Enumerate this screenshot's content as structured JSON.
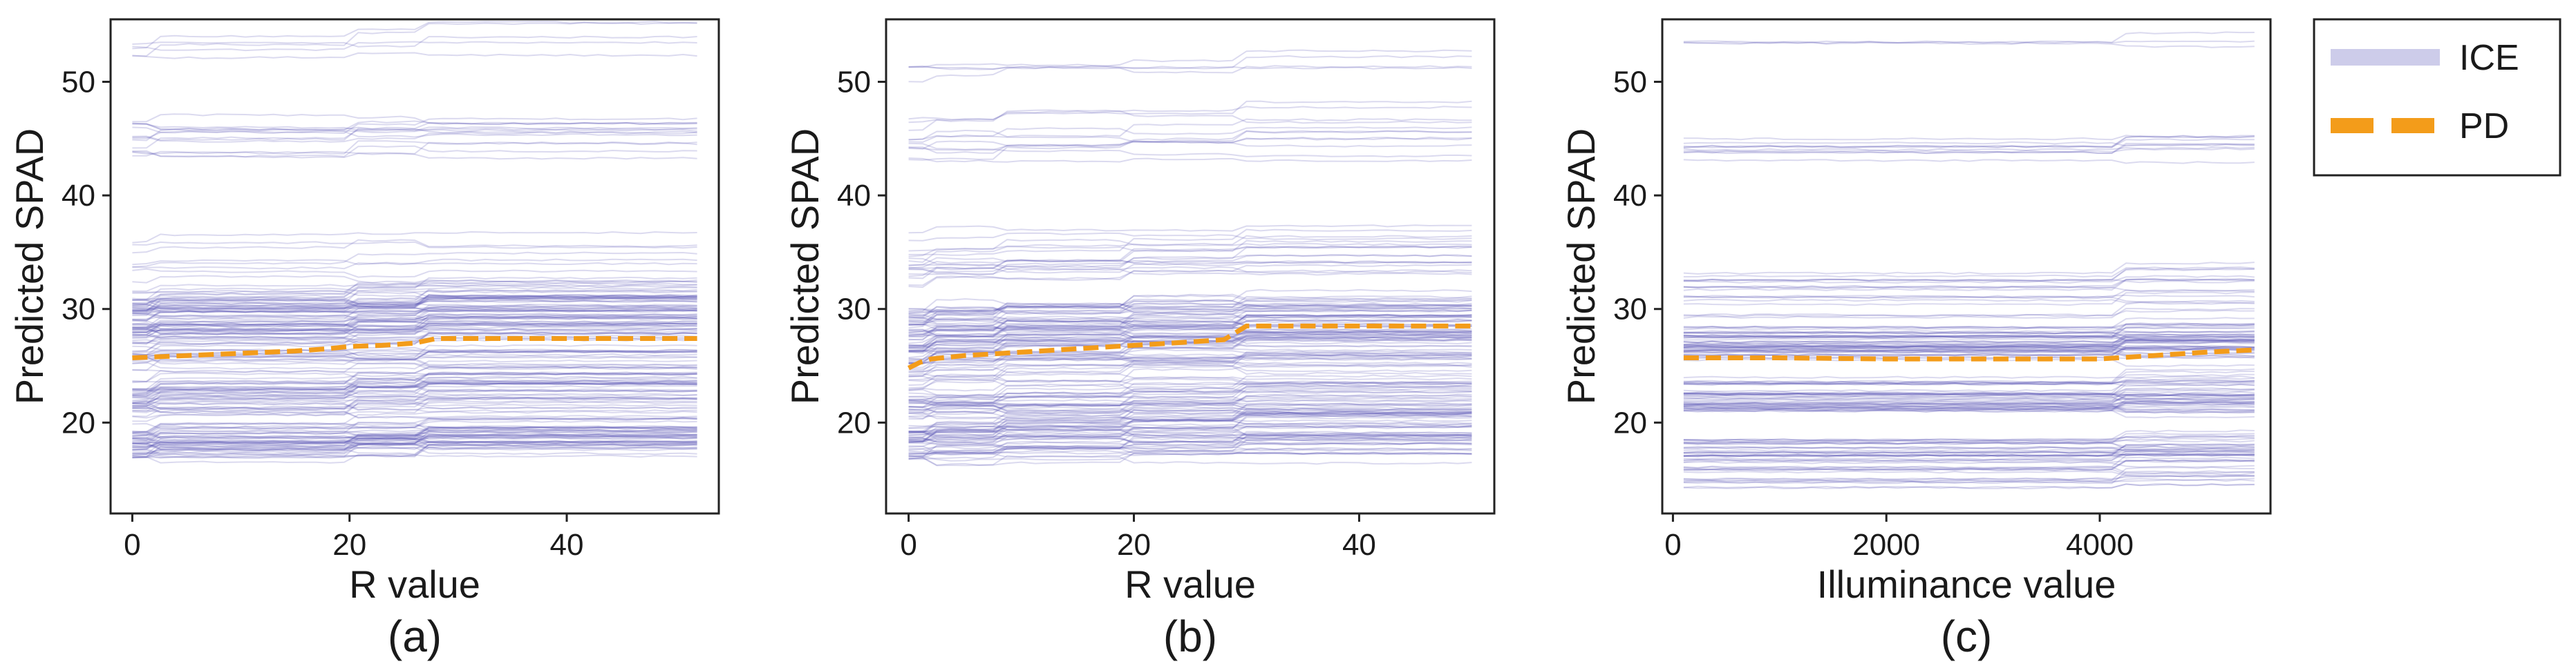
{
  "colors": {
    "ice": "#5b55b8",
    "pd": "#f39c1a",
    "axis": "#222222"
  },
  "legend": {
    "placement": "right",
    "entries": [
      {
        "label": "ICE",
        "style": "ice"
      },
      {
        "label": "PD",
        "style": "pd"
      }
    ]
  },
  "chart_data": [
    {
      "type": "line",
      "caption": "(a)",
      "xlabel": "R value",
      "ylabel": "Predicted SPAD",
      "xlim": [
        -2,
        54
      ],
      "ylim": [
        12,
        55.5
      ],
      "xticks": [
        0,
        20,
        40
      ],
      "yticks": [
        20,
        30,
        40,
        50
      ],
      "grid": false,
      "pd": {
        "name": "PD",
        "x": [
          0,
          5,
          10,
          15,
          18,
          20,
          23,
          26,
          28,
          35,
          45,
          52
        ],
        "y": [
          25.7,
          25.9,
          26.1,
          26.3,
          26.5,
          26.7,
          26.8,
          27.0,
          27.4,
          27.4,
          27.4,
          27.4
        ]
      },
      "ice": {
        "name": "ICE",
        "x_range": [
          0,
          52
        ],
        "breaks": [
          2,
          20,
          27
        ],
        "bands": [
          {
            "center": 52.8,
            "spread": 0.6,
            "count": 5
          },
          {
            "center": 44.0,
            "spread": 2.5,
            "count": 14
          },
          {
            "center": 33.0,
            "spread": 3.0,
            "count": 16
          },
          {
            "center": 29.0,
            "spread": 2.0,
            "count": 60
          },
          {
            "center": 24.0,
            "spread": 3.0,
            "count": 45
          },
          {
            "center": 18.0,
            "spread": 1.2,
            "count": 45
          },
          {
            "center": 21.0,
            "spread": 2.0,
            "count": 18
          }
        ]
      }
    },
    {
      "type": "line",
      "caption": "(b)",
      "xlabel": "R value",
      "ylabel": "Predicted SPAD",
      "xlim": [
        -2,
        52
      ],
      "ylim": [
        12,
        55.5
      ],
      "xticks": [
        0,
        20,
        40
      ],
      "yticks": [
        20,
        30,
        40,
        50
      ],
      "grid": false,
      "pd": {
        "name": "PD",
        "x": [
          0,
          1,
          2,
          5,
          10,
          15,
          20,
          25,
          28,
          30,
          35,
          40,
          50
        ],
        "y": [
          24.8,
          25.3,
          25.6,
          25.9,
          26.2,
          26.5,
          26.8,
          27.1,
          27.3,
          28.5,
          28.5,
          28.5,
          28.5
        ]
      },
      "ice": {
        "name": "ICE",
        "x_range": [
          0,
          50
        ],
        "breaks": [
          2,
          8,
          20,
          29
        ],
        "bands": [
          {
            "center": 51.5,
            "spread": 1.5,
            "count": 4
          },
          {
            "center": 45.0,
            "spread": 2.0,
            "count": 12
          },
          {
            "center": 34.0,
            "spread": 3.0,
            "count": 18
          },
          {
            "center": 28.0,
            "spread": 2.0,
            "count": 55
          },
          {
            "center": 23.5,
            "spread": 2.5,
            "count": 45
          },
          {
            "center": 18.0,
            "spread": 1.2,
            "count": 40
          },
          {
            "center": 20.5,
            "spread": 1.5,
            "count": 16
          }
        ]
      }
    },
    {
      "type": "line",
      "caption": "(c)",
      "xlabel": "Illuminance value",
      "ylabel": "Predicted SPAD",
      "xlim": [
        -100,
        5600
      ],
      "ylim": [
        12,
        55.5
      ],
      "xticks": [
        0,
        2000,
        4000
      ],
      "yticks": [
        20,
        30,
        40,
        50
      ],
      "grid": false,
      "pd": {
        "name": "PD",
        "x": [
          100,
          1000,
          2000,
          3000,
          4000,
          4500,
          5000,
          5450
        ],
        "y": [
          25.7,
          25.7,
          25.6,
          25.6,
          25.6,
          25.9,
          26.2,
          26.4
        ]
      },
      "ice": {
        "name": "ICE",
        "x_range": [
          100,
          5450
        ],
        "breaks": [
          4200
        ],
        "bands": [
          {
            "center": 53.5,
            "spread": 0.3,
            "count": 3
          },
          {
            "center": 44.5,
            "spread": 1.5,
            "count": 10
          },
          {
            "center": 31.0,
            "spread": 2.5,
            "count": 18
          },
          {
            "center": 27.0,
            "spread": 1.5,
            "count": 50
          },
          {
            "center": 22.5,
            "spread": 1.5,
            "count": 45
          },
          {
            "center": 17.0,
            "spread": 1.5,
            "count": 35
          },
          {
            "center": 14.5,
            "spread": 0.6,
            "count": 8
          }
        ]
      }
    }
  ]
}
